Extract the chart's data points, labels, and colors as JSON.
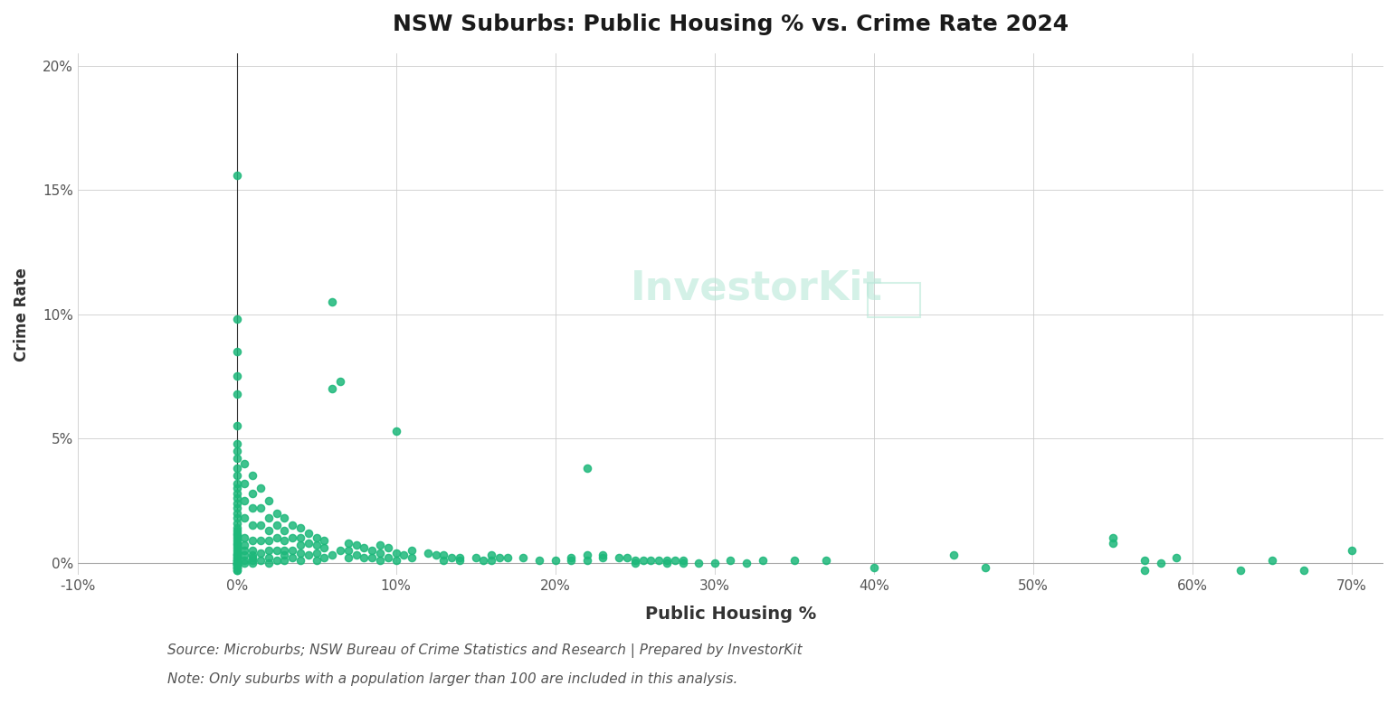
{
  "title": "NSW Suburbs: Public Housing % vs. Crime Rate 2024",
  "xlabel": "Public Housing %",
  "ylabel": "Crime Rate",
  "source_text": "Source: Microburbs; NSW Bureau of Crime Statistics and Research | Prepared by InvestorKit",
  "note_text": "Note: Only suburbs with a population larger than 100 are included in this analysis.",
  "dot_color": "#1db87a",
  "watermark_text": "InvestorKit",
  "xlim": [
    -0.1,
    0.72
  ],
  "ylim": [
    -0.005,
    0.205
  ],
  "xticks": [
    -0.1,
    0.0,
    0.1,
    0.2,
    0.3,
    0.4,
    0.5,
    0.6,
    0.7
  ],
  "yticks": [
    0.0,
    0.05,
    0.1,
    0.15,
    0.2
  ],
  "vline_x": 0.0,
  "scatter_x": [
    0.0,
    0.0,
    0.0,
    0.0,
    0.0,
    0.0,
    0.0,
    0.0,
    0.0,
    0.0,
    0.0,
    0.0,
    0.0,
    0.0,
    0.0,
    0.0,
    0.0,
    0.0,
    0.0,
    0.0,
    0.0,
    0.0,
    0.0,
    0.0,
    0.0,
    0.0,
    0.0,
    0.0,
    0.0,
    0.0,
    0.0,
    0.0,
    0.0,
    0.0,
    0.0,
    0.0,
    0.0,
    0.0,
    0.0,
    0.0,
    0.0,
    0.0,
    0.0,
    0.0,
    0.0,
    0.0,
    0.0,
    0.0,
    0.0,
    0.0,
    0.005,
    0.005,
    0.005,
    0.005,
    0.005,
    0.005,
    0.005,
    0.005,
    0.005,
    0.005,
    0.01,
    0.01,
    0.01,
    0.01,
    0.01,
    0.01,
    0.01,
    0.01,
    0.01,
    0.01,
    0.015,
    0.015,
    0.015,
    0.015,
    0.015,
    0.015,
    0.02,
    0.02,
    0.02,
    0.02,
    0.02,
    0.02,
    0.02,
    0.025,
    0.025,
    0.025,
    0.025,
    0.025,
    0.03,
    0.03,
    0.03,
    0.03,
    0.03,
    0.03,
    0.035,
    0.035,
    0.035,
    0.035,
    0.04,
    0.04,
    0.04,
    0.04,
    0.04,
    0.045,
    0.045,
    0.045,
    0.05,
    0.05,
    0.05,
    0.05,
    0.055,
    0.055,
    0.055,
    0.06,
    0.06,
    0.06,
    0.065,
    0.065,
    0.07,
    0.07,
    0.07,
    0.075,
    0.075,
    0.08,
    0.08,
    0.085,
    0.085,
    0.09,
    0.09,
    0.09,
    0.095,
    0.095,
    0.1,
    0.1,
    0.1,
    0.105,
    0.11,
    0.11,
    0.12,
    0.125,
    0.13,
    0.13,
    0.135,
    0.14,
    0.14,
    0.15,
    0.155,
    0.16,
    0.16,
    0.165,
    0.17,
    0.18,
    0.19,
    0.2,
    0.21,
    0.21,
    0.22,
    0.22,
    0.22,
    0.23,
    0.23,
    0.24,
    0.245,
    0.25,
    0.25,
    0.255,
    0.26,
    0.265,
    0.27,
    0.27,
    0.275,
    0.28,
    0.28,
    0.29,
    0.3,
    0.31,
    0.32,
    0.33,
    0.35,
    0.37,
    0.4,
    0.45,
    0.47,
    0.55,
    0.55,
    0.57,
    0.57,
    0.58,
    0.59,
    0.63,
    0.65,
    0.67,
    0.7
  ],
  "scatter_y": [
    0.156,
    0.098,
    0.085,
    0.075,
    0.068,
    0.055,
    0.048,
    0.045,
    0.042,
    0.038,
    0.035,
    0.032,
    0.03,
    0.028,
    0.026,
    0.024,
    0.022,
    0.02,
    0.018,
    0.016,
    0.014,
    0.013,
    0.012,
    0.011,
    0.01,
    0.009,
    0.008,
    0.007,
    0.006,
    0.005,
    0.004,
    0.003,
    0.003,
    0.002,
    0.002,
    0.001,
    0.001,
    0.001,
    0.0,
    0.0,
    0.0,
    0.0,
    -0.001,
    -0.001,
    -0.001,
    -0.002,
    -0.002,
    -0.002,
    -0.003,
    -0.003,
    0.04,
    0.032,
    0.025,
    0.018,
    0.01,
    0.007,
    0.005,
    0.003,
    0.001,
    0.0,
    0.035,
    0.028,
    0.022,
    0.015,
    0.009,
    0.005,
    0.003,
    0.002,
    0.001,
    0.0,
    0.03,
    0.022,
    0.015,
    0.009,
    0.004,
    0.001,
    0.025,
    0.018,
    0.013,
    0.009,
    0.005,
    0.002,
    0.0,
    0.02,
    0.015,
    0.01,
    0.005,
    0.001,
    0.018,
    0.013,
    0.009,
    0.005,
    0.003,
    0.001,
    0.015,
    0.01,
    0.005,
    0.002,
    0.014,
    0.01,
    0.007,
    0.004,
    0.001,
    0.012,
    0.008,
    0.003,
    0.01,
    0.007,
    0.004,
    0.001,
    0.009,
    0.006,
    0.002,
    0.105,
    0.07,
    0.003,
    0.073,
    0.005,
    0.008,
    0.005,
    0.002,
    0.007,
    0.003,
    0.006,
    0.002,
    0.005,
    0.002,
    0.007,
    0.004,
    0.001,
    0.006,
    0.002,
    0.053,
    0.004,
    0.001,
    0.003,
    0.005,
    0.002,
    0.004,
    0.003,
    0.003,
    0.001,
    0.002,
    0.002,
    0.001,
    0.002,
    0.001,
    0.003,
    0.001,
    0.002,
    0.002,
    0.002,
    0.001,
    0.001,
    0.002,
    0.001,
    0.038,
    0.003,
    0.001,
    0.003,
    0.002,
    0.002,
    0.002,
    0.001,
    0.0,
    0.001,
    0.001,
    0.001,
    0.001,
    0.0,
    0.001,
    0.001,
    0.0,
    0.0,
    0.0,
    0.001,
    0.0,
    0.001,
    0.001,
    0.001,
    -0.002,
    0.003,
    -0.002,
    0.01,
    0.008,
    -0.003,
    0.001,
    0.0,
    0.002,
    -0.003,
    0.001,
    -0.003,
    0.005
  ]
}
